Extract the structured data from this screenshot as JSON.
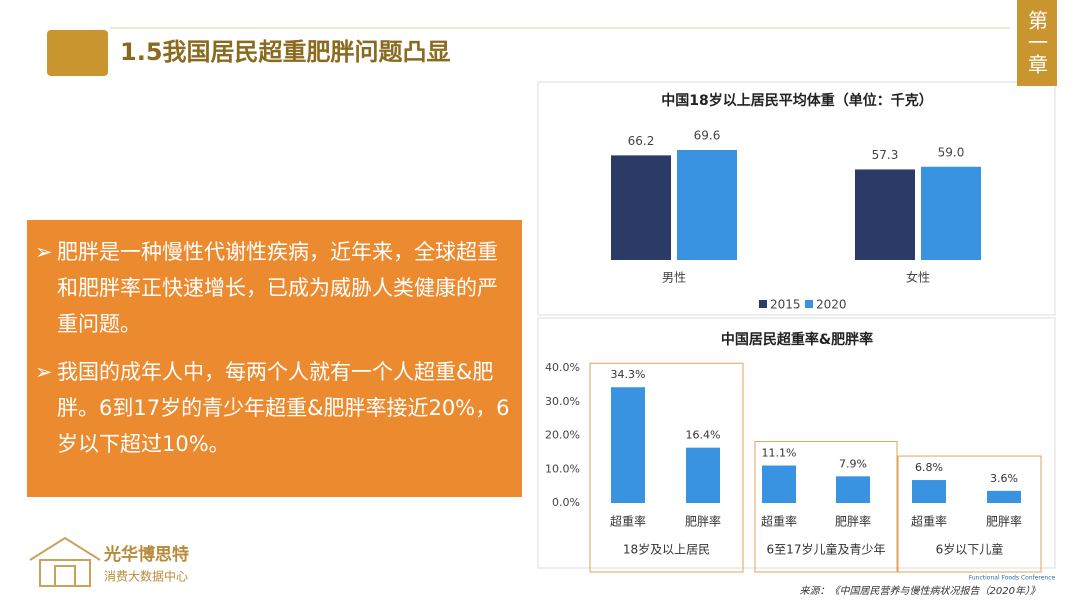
{
  "header": {
    "title": "1.5我国居民超重肥胖问题凸显",
    "chapter": "第一章"
  },
  "bullets": [
    "肥胖是一种慢性代谢性疾病，近年来，全球超重和肥胖率正快速增长，已成为威胁人类健康的严重问题。",
    "我国的成年人中，每两个人就有一个人超重&肥胖。6到17岁的青少年超重&肥胖率接近20%，6岁以下超过10%。"
  ],
  "logo": {
    "name": "光华博思特",
    "subtitle": "消费大数据中心",
    "partner": "Functional Foods Conference"
  },
  "source": "来源：《中国居民营养与慢性病状况报告（2020年）》",
  "chart_data": [
    {
      "type": "bar",
      "title": "中国18岁以上居民平均体重（单位：千克）",
      "categories": [
        "男性",
        "女性"
      ],
      "series": [
        {
          "name": "2015",
          "color": "#2b3a67",
          "values": [
            66.2,
            57.3
          ],
          "value_labels": [
            "66.2",
            "57.3"
          ]
        },
        {
          "name": "2020",
          "color": "#3a93e0",
          "values": [
            69.6,
            59.0
          ],
          "value_labels": [
            "69.6",
            "59.0"
          ]
        }
      ],
      "legend": "bottom"
    },
    {
      "type": "bar",
      "title": "中国居民超重率&肥胖率",
      "color": "#3a93e0",
      "groups": [
        {
          "name": "18岁及以上居民",
          "categories": [
            "超重率",
            "肥胖率"
          ],
          "values": [
            34.3,
            16.4
          ],
          "value_labels": [
            "34.3%",
            "16.4%"
          ]
        },
        {
          "name": "6至17岁儿童及青少年",
          "categories": [
            "超重率",
            "肥胖率"
          ],
          "values": [
            11.1,
            7.9
          ],
          "value_labels": [
            "11.1%",
            "7.9%"
          ]
        },
        {
          "name": "6岁以下儿童",
          "categories": [
            "超重率",
            "肥胖率"
          ],
          "values": [
            6.8,
            3.6
          ],
          "value_labels": [
            "6.8%",
            "3.6%"
          ]
        }
      ],
      "ylim": [
        0,
        40
      ],
      "yticks": [
        {
          "value": 0,
          "label": "0.0%"
        },
        {
          "value": 10,
          "label": "10.0%"
        },
        {
          "value": 20,
          "label": "20.0%"
        },
        {
          "value": 30,
          "label": "30.0%"
        },
        {
          "value": 40,
          "label": "40.0%"
        }
      ]
    }
  ]
}
